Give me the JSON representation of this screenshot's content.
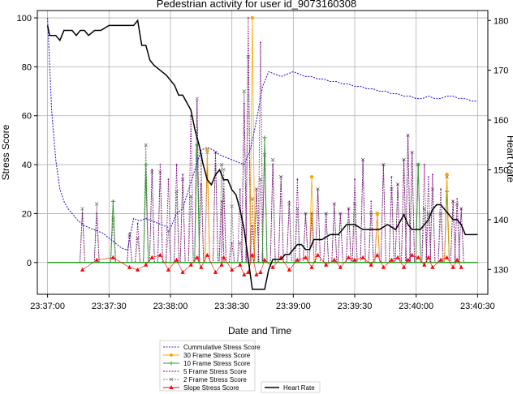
{
  "chart_data": {
    "type": "line",
    "title": "Pedestrian activity for user id_9073160308",
    "xlabel": "Date and Time",
    "ylabel": "Stress Score",
    "y2label": "Heart Rate",
    "x_ticks": [
      "23:37:00",
      "23:37:30",
      "23:38:00",
      "23:38:30",
      "23:39:00",
      "23:39:30",
      "23:40:00",
      "23:40:30"
    ],
    "y_ticks": [
      0,
      20,
      40,
      60,
      80,
      100
    ],
    "y2_ticks": [
      130,
      140,
      150,
      160,
      170,
      180
    ],
    "xlim_seconds": [
      -5,
      215
    ],
    "ylim": [
      -13,
      103
    ],
    "y2lim": [
      125,
      182
    ],
    "grid": true,
    "legend_position": "bottom-center",
    "legend": {
      "cumulative": "Cummulative Stress Score",
      "f30": "30 Frame Stress Score",
      "f10": "10 Frame Stress Score",
      "f5": "5 Frame Stress Score",
      "f2": "2 Frame Stress Score",
      "slope": "Slope Stress Score",
      "hr": "Heart Rate"
    },
    "colors": {
      "cumulative": "#2b22d0",
      "f30": "#ffa500",
      "f10": "#2ca02c",
      "f5": "#800080",
      "f2": "#7f7f7f",
      "slope": "#ff0000",
      "hr": "#000000"
    },
    "series": [
      {
        "key": "cumulative",
        "x": [
          0,
          2,
          4,
          6,
          8,
          10,
          12,
          15,
          18,
          21,
          24,
          27,
          30,
          33,
          36,
          39,
          42,
          45,
          48,
          51,
          54,
          57,
          60,
          63,
          66,
          69,
          72,
          75,
          78,
          81,
          84,
          87,
          90,
          93,
          96,
          99,
          102,
          105,
          108,
          111,
          114,
          117,
          120,
          123,
          126,
          129,
          132,
          135,
          138,
          141,
          144,
          147,
          150,
          153,
          156,
          159,
          162,
          165,
          168,
          171,
          174,
          177,
          180,
          183,
          186,
          189,
          192,
          195,
          198,
          201,
          204,
          207,
          210
        ],
        "y": [
          100,
          62,
          42,
          30,
          25,
          22,
          20,
          17,
          15,
          14,
          13,
          12,
          10,
          8,
          6,
          5,
          18,
          17,
          18,
          17,
          16,
          15,
          14,
          20,
          22,
          30,
          38,
          46,
          47,
          46,
          44,
          43,
          42,
          41,
          40,
          46,
          58,
          72,
          78,
          77,
          76,
          77,
          78,
          77,
          76,
          76,
          75,
          75,
          74,
          74,
          73,
          73,
          72,
          72,
          71,
          71,
          70,
          70,
          69,
          69,
          68,
          68,
          67,
          67,
          68,
          67,
          67,
          68,
          68,
          67,
          67,
          66,
          66
        ]
      },
      {
        "key": "hr",
        "x": [
          0,
          1,
          4,
          6,
          8,
          12,
          14,
          16,
          18,
          20,
          23,
          26,
          30,
          34,
          38,
          42,
          44,
          46,
          48,
          50,
          52,
          55,
          58,
          62,
          64,
          66,
          70,
          72,
          74,
          76,
          78,
          80,
          82,
          84,
          86,
          88,
          90,
          92,
          94,
          96,
          98,
          100,
          102,
          104,
          106,
          108,
          110,
          112,
          114,
          116,
          118,
          122,
          124,
          126,
          128,
          130,
          134,
          138,
          142,
          146,
          150,
          154,
          158,
          162,
          166,
          170,
          174,
          176,
          178,
          182,
          186,
          188,
          190,
          192,
          194,
          196,
          198,
          200,
          202,
          204,
          206,
          208,
          210
        ],
        "y": [
          179,
          177,
          177,
          176,
          178,
          178,
          177,
          178,
          178,
          177,
          178,
          178,
          179,
          179,
          179,
          179,
          180,
          175,
          175,
          172,
          171,
          170,
          169,
          167,
          165,
          165,
          162,
          158,
          155,
          151,
          148,
          147,
          149,
          150,
          148,
          148,
          146,
          145,
          142,
          138,
          132,
          126,
          126,
          126,
          126,
          130,
          132,
          132,
          132,
          133,
          133,
          135,
          135,
          134,
          134,
          136,
          136,
          137,
          137,
          139,
          139,
          138,
          138,
          138,
          139,
          138,
          141,
          139,
          138,
          138,
          140,
          142,
          143,
          143,
          142,
          141,
          140,
          140,
          139,
          137,
          137,
          137,
          137
        ]
      }
    ],
    "stress_events": {
      "x": [
        17,
        24,
        32,
        40,
        44,
        48,
        51,
        55,
        59,
        63,
        66,
        70,
        73,
        75,
        78,
        82,
        85,
        86,
        90,
        94,
        96,
        98,
        100,
        102,
        104,
        106,
        110,
        114,
        118,
        122,
        126,
        129,
        132,
        136,
        140,
        143,
        147,
        150,
        154,
        158,
        161,
        164,
        168,
        171,
        174,
        176,
        178,
        181,
        184,
        186,
        188,
        192,
        195,
        198,
        200,
        202
      ],
      "f30": [
        0,
        0,
        0,
        0,
        0,
        0,
        0,
        0,
        0,
        0,
        0,
        0,
        0,
        0,
        46,
        0,
        0,
        0,
        0,
        0,
        0,
        0,
        100,
        0,
        0,
        0,
        0,
        0,
        0,
        0,
        0,
        35,
        0,
        0,
        0,
        0,
        0,
        0,
        0,
        0,
        20,
        0,
        0,
        0,
        0,
        0,
        0,
        0,
        0,
        0,
        0,
        0,
        36,
        0,
        0,
        0
      ],
      "f10": [
        0,
        0,
        25,
        0,
        0,
        40,
        0,
        0,
        0,
        0,
        0,
        0,
        48,
        0,
        0,
        0,
        0,
        0,
        0,
        0,
        0,
        0,
        0,
        0,
        0,
        51,
        0,
        0,
        0,
        0,
        0,
        0,
        0,
        0,
        0,
        0,
        0,
        0,
        0,
        0,
        0,
        0,
        0,
        0,
        0,
        0,
        0,
        40,
        0,
        0,
        0,
        0,
        29,
        0,
        0,
        0
      ],
      "f5": [
        20,
        20,
        25,
        12,
        16,
        34,
        38,
        40,
        34,
        40,
        36,
        60,
        66,
        32,
        40,
        45,
        25,
        30,
        8,
        30,
        65,
        100,
        15,
        30,
        90,
        50,
        40,
        35,
        25,
        34,
        20,
        20,
        30,
        20,
        24,
        20,
        22,
        34,
        42,
        25,
        20,
        40,
        35,
        32,
        42,
        52,
        45,
        40,
        40,
        35,
        36,
        30,
        35,
        25,
        26,
        22
      ],
      "f2": [
        22,
        24,
        18,
        11,
        10,
        48,
        37,
        37,
        13,
        29,
        34,
        27,
        67,
        44,
        45,
        45,
        40,
        38,
        23,
        8,
        70,
        84,
        26,
        30,
        34,
        44,
        42,
        35,
        24,
        22,
        20,
        20,
        30,
        20,
        24,
        20,
        22,
        24,
        42,
        20,
        20,
        40,
        30,
        32,
        42,
        52,
        45,
        40,
        22,
        20,
        30,
        20,
        35,
        25,
        24,
        22
      ],
      "slope": [
        -3,
        1,
        2,
        -2,
        -3,
        -1,
        2,
        3,
        -3,
        1,
        -4,
        -1,
        2,
        -2,
        3,
        -4,
        -1,
        2,
        -3,
        -1,
        -5,
        -4,
        3,
        -5,
        -4,
        1,
        -2,
        2,
        -3,
        1,
        2,
        -2,
        3,
        -1,
        1,
        -2,
        2,
        1,
        2,
        -1,
        3,
        -2,
        1,
        2,
        -2,
        1,
        3,
        2,
        -1,
        2,
        -2,
        1,
        2,
        -2,
        1,
        -2
      ]
    }
  }
}
